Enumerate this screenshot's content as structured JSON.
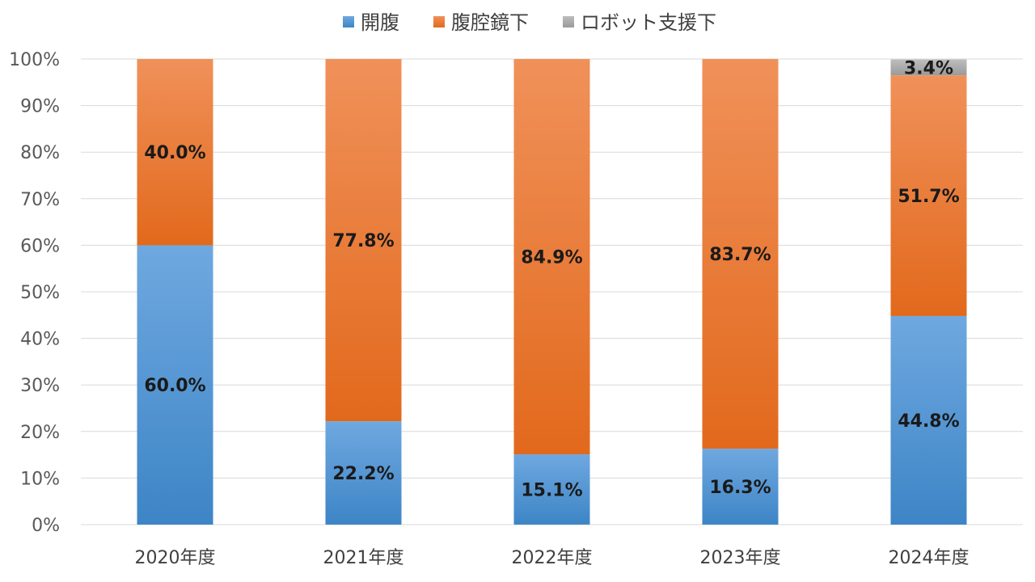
{
  "chart_data": {
    "type": "bar",
    "stacked": true,
    "normalized": true,
    "categories": [
      "2020年度",
      "2021年度",
      "2022年度",
      "2023年度",
      "2024年度"
    ],
    "series": [
      {
        "name": "開腹",
        "values": [
          60.0,
          22.2,
          15.1,
          16.3,
          44.8
        ],
        "labels": [
          "60.0%",
          "22.2%",
          "15.1%",
          "16.3%",
          "44.8%"
        ],
        "color": "#5b9bd5",
        "color_top": "#6fa8e0",
        "color_bottom": "#3d85c6"
      },
      {
        "name": "腹腔鏡下",
        "values": [
          40.0,
          77.8,
          84.9,
          83.7,
          51.7
        ],
        "labels": [
          "40.0%",
          "77.8%",
          "84.9%",
          "83.7%",
          "51.7%"
        ],
        "color": "#ed7d31",
        "color_top": "#f0915a",
        "color_bottom": "#e2691c"
      },
      {
        "name": "ロボット支援下",
        "values": [
          0,
          0,
          0,
          0,
          3.4
        ],
        "labels": [
          "",
          "",
          "",
          "",
          "3.4%"
        ],
        "color": "#a5a5a5",
        "color_top": "#bdbdbd",
        "color_bottom": "#9a9a9a"
      }
    ],
    "y_ticks": [
      "0%",
      "10%",
      "20%",
      "30%",
      "40%",
      "50%",
      "60%",
      "70%",
      "80%",
      "90%",
      "100%"
    ],
    "ylim": [
      0,
      100
    ],
    "grid": true,
    "legend_position": "top-center",
    "title": "",
    "xlabel": "",
    "ylabel": ""
  }
}
